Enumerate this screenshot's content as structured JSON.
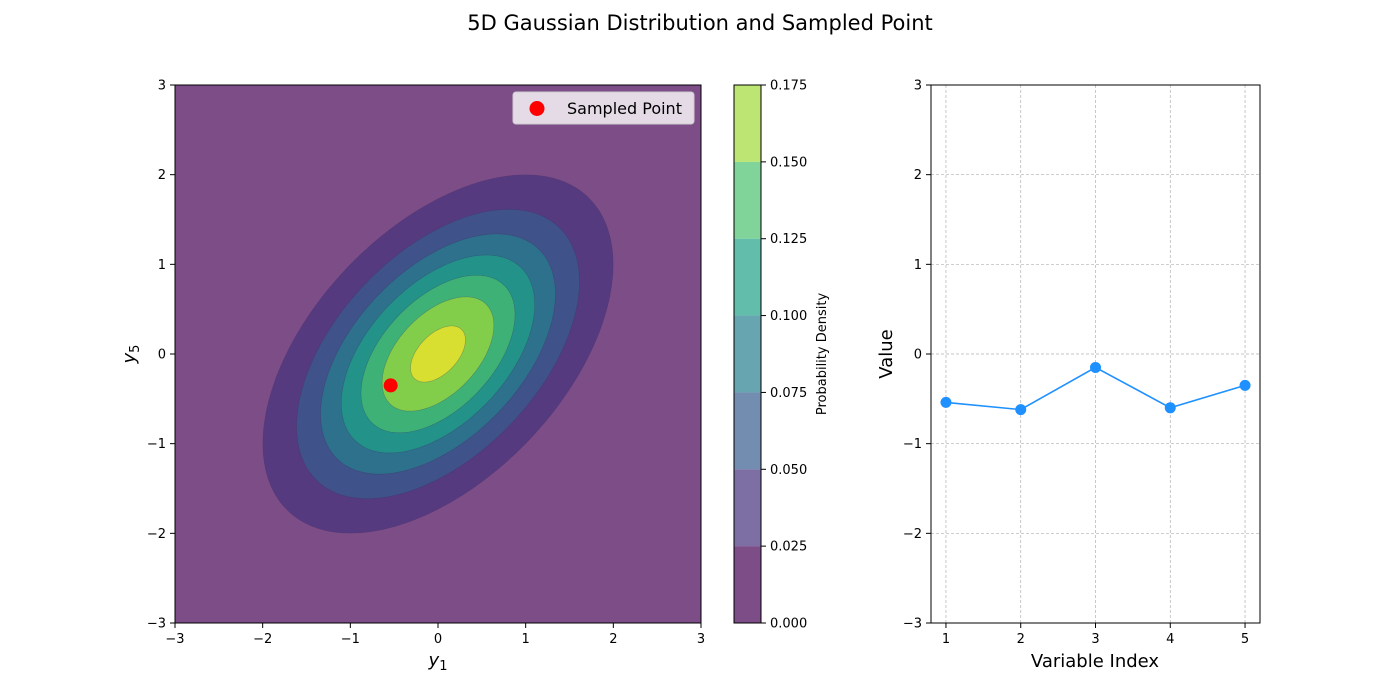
{
  "figure": {
    "title": "5D Gaussian Distribution and Sampled Point"
  },
  "colors": {
    "background": "#ffffff",
    "sampled_point": "#ff0000",
    "series_line": "#1e90ff",
    "grid": "#b0b0b0",
    "legend_bg": "#ffffff"
  },
  "chart_data": [
    {
      "type": "contour",
      "panel": "left",
      "title": "",
      "xlabel_base": "y",
      "xlabel_sub": "1",
      "ylabel_base": "y",
      "ylabel_sub": "5",
      "xlim": [
        -3,
        3
      ],
      "ylim": [
        -3,
        3
      ],
      "xticks": [
        -3,
        -2,
        -1,
        0,
        1,
        2,
        3
      ],
      "yticks": [
        -3,
        -2,
        -1,
        0,
        1,
        2,
        3
      ],
      "tick_labels_x": [
        "−3",
        "−2",
        "−1",
        "0",
        "1",
        "2",
        "3"
      ],
      "tick_labels_y": [
        "−3",
        "−2",
        "−1",
        "0",
        "1",
        "2",
        "3"
      ],
      "grid": false,
      "distribution": {
        "mean": [
          0,
          0
        ],
        "covariance": [
          [
            1.0,
            0.5
          ],
          [
            0.5,
            1.0
          ]
        ]
      },
      "contour_levels": [
        0.0,
        0.025,
        0.05,
        0.075,
        0.1,
        0.125,
        0.15,
        0.175
      ],
      "level_colors": [
        "#440154",
        "#46327e",
        "#365c8d",
        "#277f8e",
        "#1fa187",
        "#4ac16d",
        "#a0da39",
        "#fde725"
      ],
      "alpha": 0.7,
      "sampled_point": {
        "x": -0.54,
        "y": -0.35,
        "label": "Sampled Point"
      },
      "legend": {
        "entries": [
          "Sampled Point"
        ],
        "placement": "upper right"
      },
      "colorbar": {
        "label": "Probability Density",
        "ticks": [
          0.0,
          0.025,
          0.05,
          0.075,
          0.1,
          0.125,
          0.15,
          0.175
        ],
        "tick_labels": [
          "0.000",
          "0.025",
          "0.050",
          "0.075",
          "0.100",
          "0.125",
          "0.150",
          "0.175"
        ]
      }
    },
    {
      "type": "line",
      "panel": "right",
      "title": "",
      "xlabel": "Variable Index",
      "ylabel": "Value",
      "x": [
        1,
        2,
        3,
        4,
        5
      ],
      "values": [
        -0.54,
        -0.62,
        -0.15,
        -0.6,
        -0.35
      ],
      "xlim": [
        0.8,
        5.2
      ],
      "ylim": [
        -3,
        3
      ],
      "xticks": [
        1,
        2,
        3,
        4,
        5
      ],
      "yticks": [
        -3,
        -2,
        -1,
        0,
        1,
        2,
        3
      ],
      "tick_labels_x": [
        "1",
        "2",
        "3",
        "4",
        "5"
      ],
      "tick_labels_y": [
        "−3",
        "−2",
        "−1",
        "0",
        "1",
        "2",
        "3"
      ],
      "grid": true,
      "marker": "circle"
    }
  ]
}
